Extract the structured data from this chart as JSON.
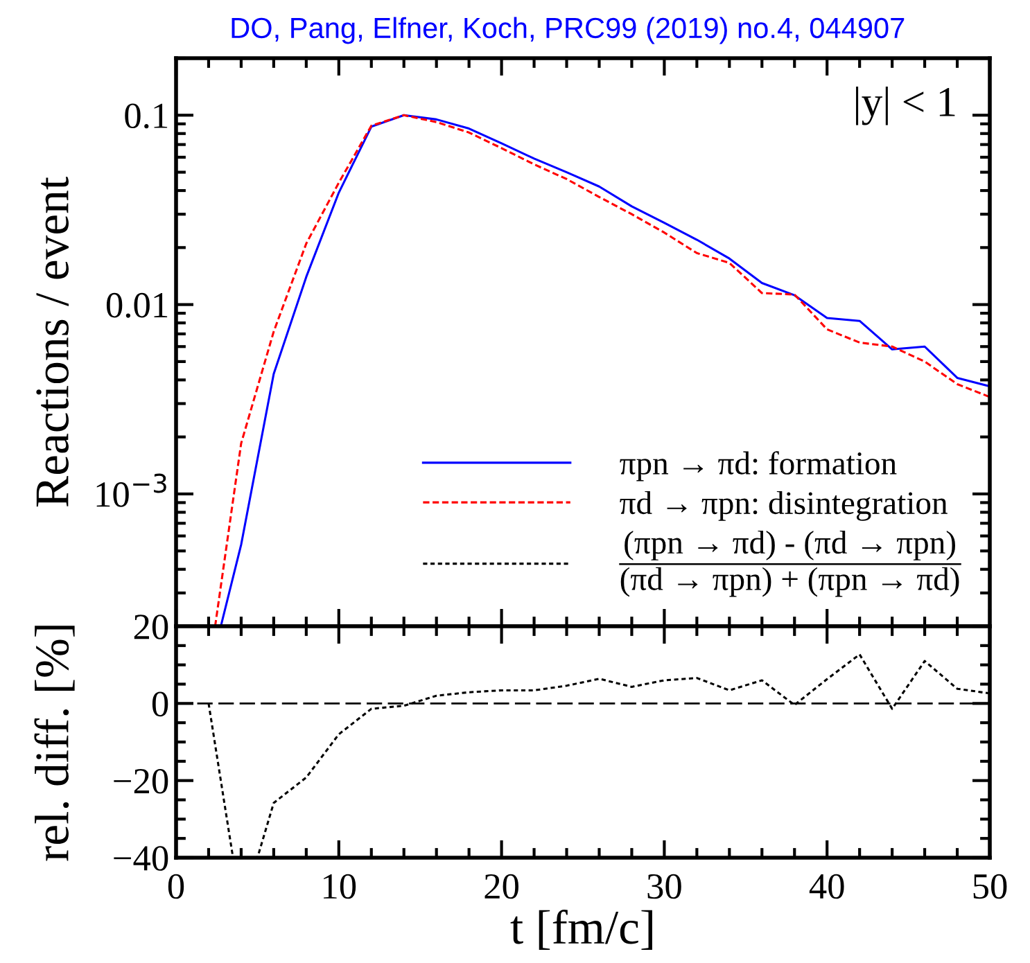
{
  "chart_data": [
    {
      "type": "line",
      "title": "DO, Pang, Elfner, Koch, PRC99 (2019) no.4, 044907",
      "ylabel": "Reactions / event",
      "log": "y",
      "legend": "bottom right",
      "tick_labels": "y",
      "grid": false,
      "annotations": [
        "|y| < 1"
      ],
      "xlim": [
        0,
        50
      ],
      "xticks": [
        0,
        {
          "value": 2,
          "label": null
        },
        {
          "value": 4,
          "label": null
        },
        {
          "value": 6,
          "label": null
        },
        {
          "value": 8,
          "label": null
        },
        10,
        {
          "value": 12,
          "label": null
        },
        {
          "value": 14,
          "label": null
        },
        {
          "value": 16,
          "label": null
        },
        {
          "value": 18,
          "label": null
        },
        20,
        {
          "value": 22,
          "label": null
        },
        {
          "value": 24,
          "label": null
        },
        {
          "value": 26,
          "label": null
        },
        {
          "value": 28,
          "label": null
        },
        30,
        {
          "value": 32,
          "label": null
        },
        {
          "value": 34,
          "label": null
        },
        {
          "value": 36,
          "label": null
        },
        {
          "value": 38,
          "label": null
        },
        40,
        {
          "value": 42,
          "label": null
        },
        {
          "value": 44,
          "label": null
        },
        {
          "value": 46,
          "label": null
        },
        {
          "value": 48,
          "label": null
        },
        50
      ],
      "ylim": [
        0.0002,
        0.2
      ],
      "yticks": [
        {
          "value": 0.001,
          "label": "10$^{−3}$"
        },
        0.01,
        0.1
      ],
      "series": [
        {
          "name": "πpn → πd: formation",
          "color": "#0000ff",
          "line_style": "solid",
          "x": [
            2.75,
            4,
            6,
            8,
            10,
            12,
            14,
            16,
            18,
            20,
            22,
            24,
            26,
            28,
            30,
            32,
            34,
            36,
            38,
            40,
            42,
            44,
            46,
            48,
            50
          ],
          "values": [
            0.0002,
            0.00054,
            0.0043,
            0.014,
            0.039,
            0.087,
            0.1,
            0.095,
            0.085,
            0.071,
            0.059,
            0.05,
            0.042,
            0.033,
            0.027,
            0.022,
            0.0175,
            0.013,
            0.0112,
            0.0085,
            0.0082,
            0.0058,
            0.006,
            0.0041,
            0.0037
          ]
        },
        {
          "name": "πd → πpn: disintegration",
          "color": "#ff0000",
          "line_style": "dashed",
          "x": [
            2.4,
            4,
            6,
            8,
            10,
            12,
            14,
            16,
            18,
            20,
            22,
            24,
            26,
            28,
            30,
            32,
            34,
            36,
            38,
            40,
            42,
            44,
            46,
            48,
            50
          ],
          "values": [
            0.0002,
            0.00185,
            0.0072,
            0.021,
            0.044,
            0.088,
            0.1,
            0.092,
            0.081,
            0.067,
            0.055,
            0.046,
            0.037,
            0.03,
            0.024,
            0.0187,
            0.0166,
            0.0115,
            0.0113,
            0.0074,
            0.0063,
            0.006,
            0.005,
            0.0038,
            0.00325
          ]
        }
      ]
    },
    {
      "type": "line",
      "xlabel": "t [fm/c]",
      "ylabel": "rel. diff. [%]",
      "grid": false,
      "xlim": [
        0,
        50
      ],
      "xticks": [
        0,
        {
          "value": 2,
          "label": null
        },
        {
          "value": 4,
          "label": null
        },
        {
          "value": 6,
          "label": null
        },
        {
          "value": 8,
          "label": null
        },
        10,
        {
          "value": 12,
          "label": null
        },
        {
          "value": 14,
          "label": null
        },
        {
          "value": 16,
          "label": null
        },
        {
          "value": 18,
          "label": null
        },
        20,
        {
          "value": 22,
          "label": null
        },
        {
          "value": 24,
          "label": null
        },
        {
          "value": 26,
          "label": null
        },
        {
          "value": 28,
          "label": null
        },
        30,
        {
          "value": 32,
          "label": null
        },
        {
          "value": 34,
          "label": null
        },
        {
          "value": 36,
          "label": null
        },
        {
          "value": 38,
          "label": null
        },
        40,
        {
          "value": 42,
          "label": null
        },
        {
          "value": 44,
          "label": null
        },
        {
          "value": 46,
          "label": null
        },
        {
          "value": 48,
          "label": null
        },
        50
      ],
      "ylim": [
        -40,
        20
      ],
      "yticks": [
        {
          "value": -40,
          "label": "−40"
        },
        {
          "value": -35,
          "label": null
        },
        {
          "value": -30,
          "label": null
        },
        {
          "value": -25,
          "label": null
        },
        {
          "value": -20,
          "label": "−20"
        },
        {
          "value": -15,
          "label": null
        },
        {
          "value": -10,
          "label": null
        },
        {
          "value": -5,
          "label": null
        },
        0,
        {
          "value": 5,
          "label": null
        },
        {
          "value": 10,
          "label": null
        },
        {
          "value": 15,
          "label": null
        },
        20
      ],
      "ref_lines": [
        {
          "axis": "y",
          "value": 0,
          "color": "#000000",
          "line_style": "dashed"
        }
      ],
      "series": [
        {
          "name": "(πpn → πd) - (πd → πpn)\n(πd → πpn) + (πpn → πd)",
          "color": "#000000",
          "line_style": "dotted",
          "x": [
            2,
            3.5,
            5,
            6,
            8,
            10,
            12,
            14,
            16,
            18,
            20,
            22,
            24,
            26,
            28,
            30,
            32,
            34,
            36,
            38,
            40,
            42,
            44,
            46,
            48,
            50
          ],
          "values": [
            0,
            -40,
            -40,
            -25.8,
            -19.2,
            -8.0,
            -1.4,
            -0.6,
            2.0,
            2.9,
            3.4,
            3.4,
            4.6,
            6.4,
            4.3,
            6.0,
            6.6,
            3.4,
            6.0,
            -0.4,
            6.3,
            12.7,
            -1.4,
            11.0,
            3.8,
            2.6
          ]
        }
      ]
    }
  ]
}
